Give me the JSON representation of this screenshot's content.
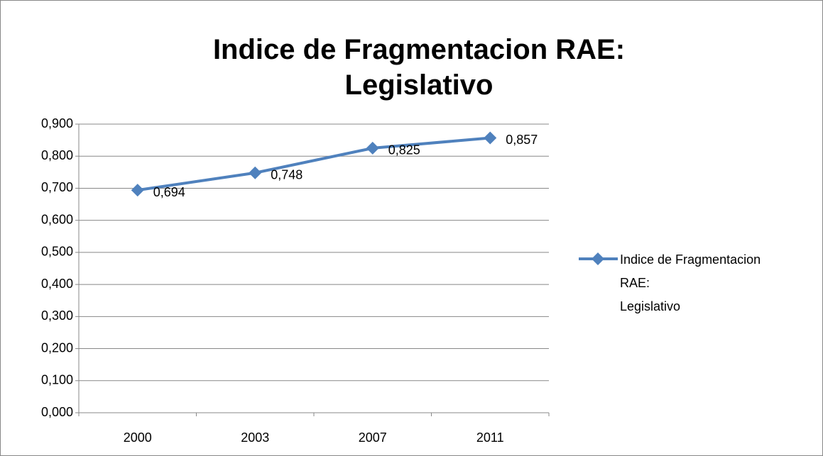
{
  "chart_data": {
    "type": "line",
    "title": "Indice de Fragmentacion RAE:\nLegislativo",
    "categories": [
      "2000",
      "2003",
      "2007",
      "2011"
    ],
    "series": [
      {
        "name": "Indice de Fragmentacion RAE:\nLegislativo",
        "color": "#4f81bd",
        "values": [
          0.694,
          0.748,
          0.825,
          0.857
        ],
        "value_labels": [
          "0,694",
          "0,748",
          "0,825",
          "0,857"
        ]
      }
    ],
    "ylim": [
      0,
      0.9
    ],
    "yticks": [
      {
        "value": 0,
        "label": "0,000"
      },
      {
        "value": 0.1,
        "label": "0,100"
      },
      {
        "value": 0.2,
        "label": "0,200"
      },
      {
        "value": 0.3,
        "label": "0,300"
      },
      {
        "value": 0.4,
        "label": "0,400"
      },
      {
        "value": 0.5,
        "label": "0,500"
      },
      {
        "value": 0.6,
        "label": "0,600"
      },
      {
        "value": 0.7,
        "label": "0,700"
      },
      {
        "value": 0.8,
        "label": "0,800"
      },
      {
        "value": 0.9,
        "label": "0,900"
      }
    ],
    "grid": true,
    "legend": "right"
  }
}
